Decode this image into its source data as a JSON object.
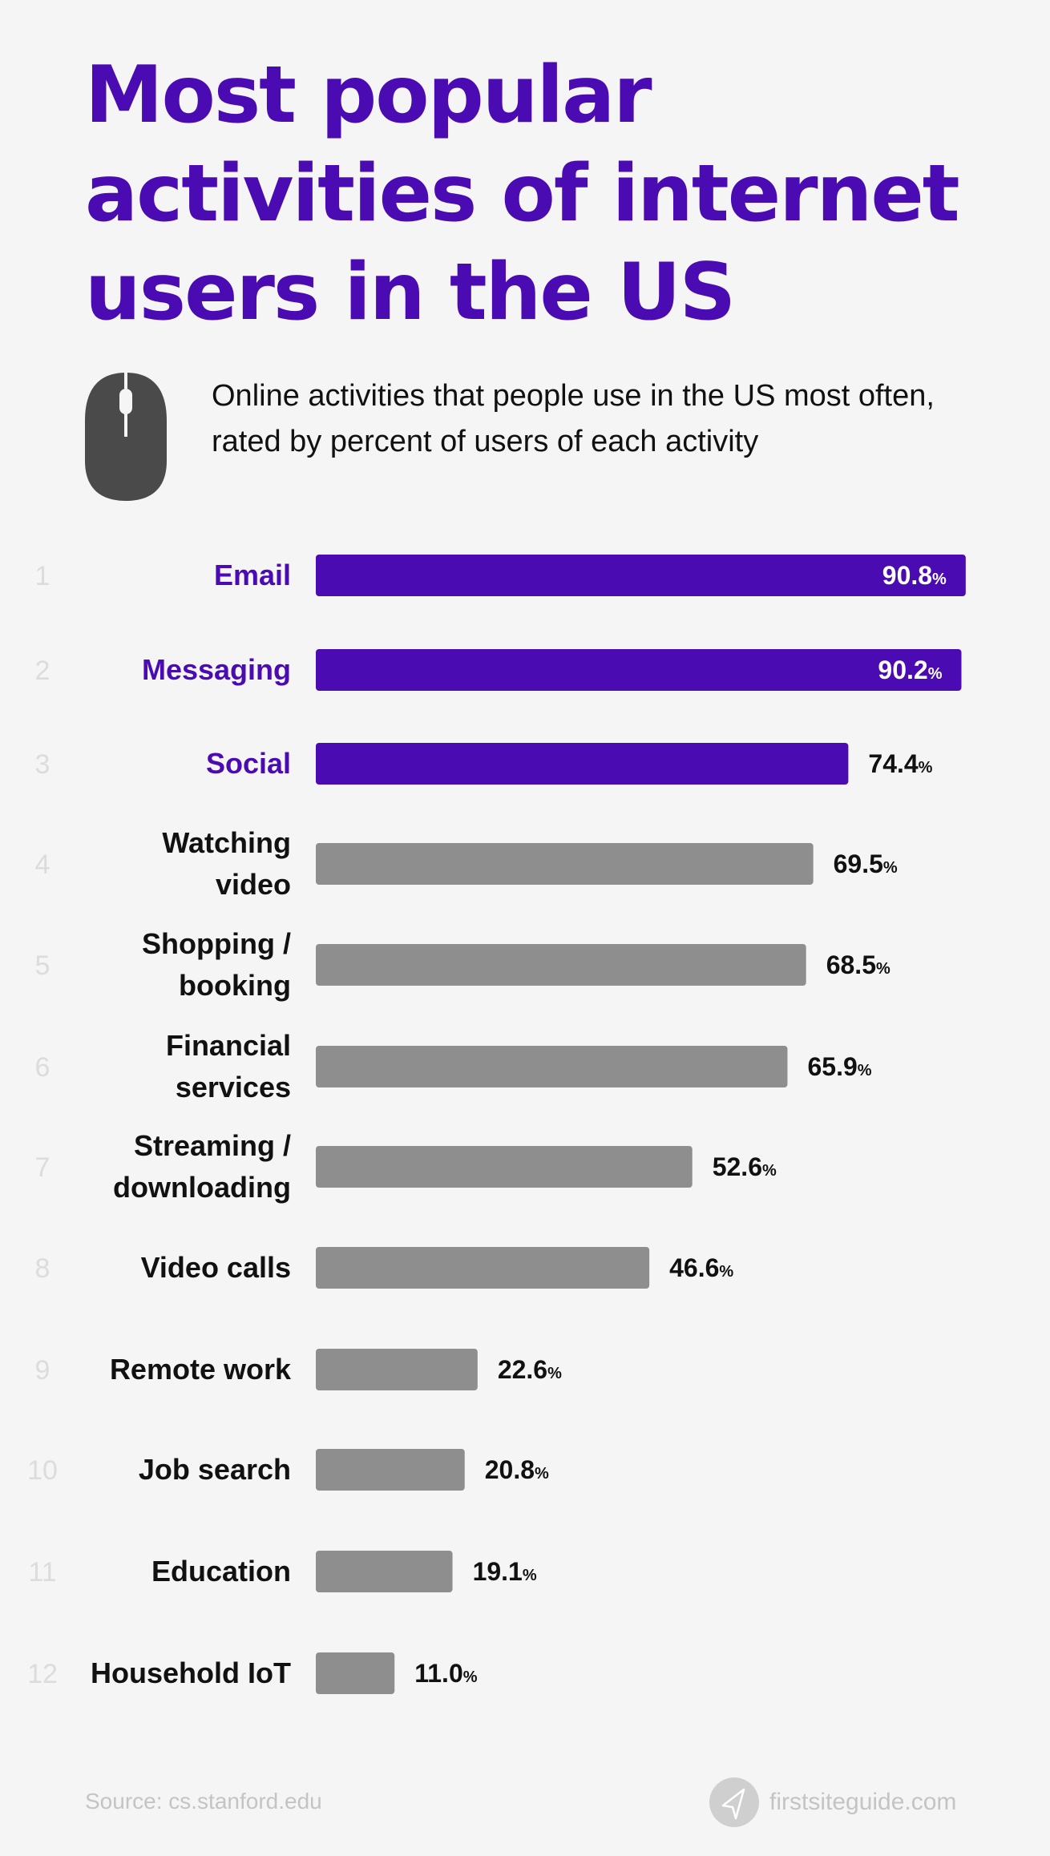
{
  "title": "Most popular activities of internet users in the US",
  "subtitle": "Online activities that people use in the US most often, rated by percent of users of each activity",
  "icon": "computer-mouse-icon",
  "colors": {
    "highlight": "#4b0bb3",
    "default_bar": "#8e8e8e",
    "background": "#f5f5f5",
    "rank": "#dcdcdc"
  },
  "chart_data": {
    "type": "bar",
    "orientation": "horizontal",
    "categories": [
      "Email",
      "Messaging",
      "Social",
      "Watching video",
      "Shopping / booking",
      "Financial services",
      "Streaming / downloading",
      "Video calls",
      "Remote work",
      "Job search",
      "Education",
      "Household IoT"
    ],
    "label_lines": [
      [
        "Email"
      ],
      [
        "Messaging"
      ],
      [
        "Social"
      ],
      [
        "Watching",
        "video"
      ],
      [
        "Shopping /",
        "booking"
      ],
      [
        "Financial",
        "services"
      ],
      [
        "Streaming /",
        "downloading"
      ],
      [
        "Video calls"
      ],
      [
        "Remote work"
      ],
      [
        "Job search"
      ],
      [
        "Education"
      ],
      [
        "Household IoT"
      ]
    ],
    "ranks": [
      "1",
      "2",
      "3",
      "4",
      "5",
      "6",
      "7",
      "8",
      "9",
      "10",
      "11",
      "12"
    ],
    "values": [
      90.8,
      90.2,
      74.4,
      69.5,
      68.5,
      65.9,
      52.6,
      46.6,
      22.6,
      20.8,
      19.1,
      11.0
    ],
    "value_labels": [
      "90.8",
      "90.2",
      "74.4",
      "69.5",
      "68.5",
      "65.9",
      "52.6",
      "46.6",
      "22.6",
      "20.8",
      "19.1",
      "11.0"
    ],
    "unit": "%",
    "highlighted_count": 3,
    "xlim": [
      0,
      100
    ],
    "grid": false
  },
  "footer": {
    "source": "Source: cs.stanford.edu",
    "brand": "firstsiteguide.com",
    "brand_icon": "paper-plane-icon"
  }
}
